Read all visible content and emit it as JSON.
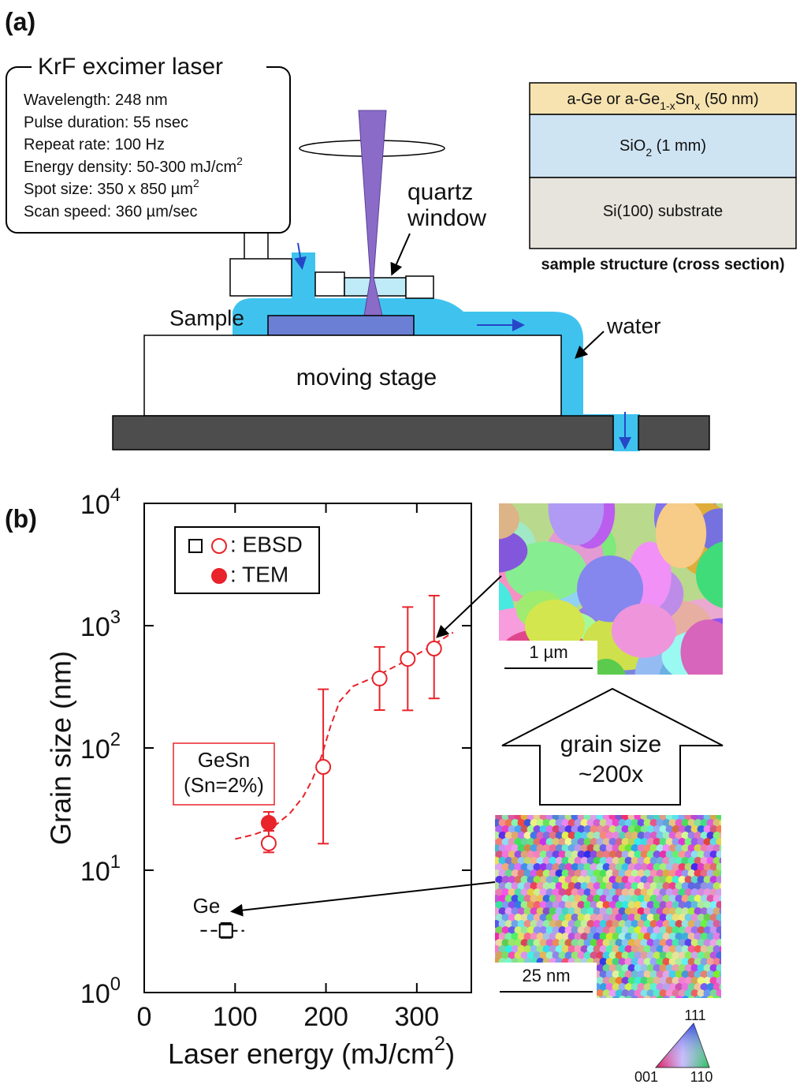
{
  "panel_a": {
    "label": "(a)",
    "laser": {
      "title": "KrF excimer laser",
      "specs": [
        [
          "Wavelength: 248 nm"
        ],
        [
          "Pulse duration: 55 nsec"
        ],
        [
          "Repeat rate: 100 Hz"
        ],
        [
          "Energy density: 50-300 mJ/cm",
          "2"
        ],
        [
          "Spot size: 350 x 850 µm",
          "2"
        ],
        [
          "Scan speed: 360 µm/sec"
        ]
      ]
    },
    "quartz_window": [
      "quartz",
      "window"
    ],
    "sample": "Sample",
    "water": "water",
    "stage": "moving stage",
    "layers": [
      [
        "a-Ge or a-Ge",
        "1-x",
        "Sn",
        "x",
        " (50 nm)"
      ],
      [
        "SiO",
        "2",
        " (1 mm)"
      ],
      [
        "Si(100) substrate"
      ]
    ],
    "layers_caption": "sample structure (cross section)"
  },
  "chart_data": {
    "type": "scatter",
    "label": "(b)",
    "xlabel": [
      "Laser energy (mJ/cm",
      "2",
      ")"
    ],
    "ylabel": "Grain size (nm)",
    "xlim": [
      0,
      360
    ],
    "ylim": [
      1,
      10000
    ],
    "yscale": "log",
    "xticks": [
      0,
      100,
      200,
      300
    ],
    "yticks": [
      {
        "value": 1,
        "label": "10",
        "exp": "0"
      },
      {
        "value": 10,
        "label": "10",
        "exp": "1"
      },
      {
        "value": 100,
        "label": "10",
        "exp": "2"
      },
      {
        "value": 1000,
        "label": "10",
        "exp": "3"
      },
      {
        "value": 10000,
        "label": "10",
        "exp": "4"
      }
    ],
    "series": [
      {
        "marker": "open-circle",
        "color": "#e8232a",
        "x": [
          137,
          197,
          259,
          290,
          319
        ],
        "values": [
          16.6,
          70,
          370,
          535,
          650
        ],
        "err_low": [
          14,
          16.5,
          204,
          203,
          254
        ],
        "err_high": [
          21,
          302,
          670,
          1420,
          1760
        ]
      },
      {
        "marker": "filled-circle",
        "color": "#e8232a",
        "x": [
          137
        ],
        "values": [
          24.4
        ],
        "err_low": [
          21
        ],
        "err_high": [
          30
        ]
      },
      {
        "marker": "open-square",
        "color": "#000000",
        "x": [
          90
        ],
        "values": [
          3.2
        ],
        "err_low": [
          2.8
        ],
        "err_high": [
          3.7
        ]
      }
    ],
    "fits": [
      {
        "color": "#e8232a",
        "x": [
          100,
          120,
          140,
          160,
          175,
          185,
          195,
          205,
          215,
          230,
          250,
          280,
          310,
          340
        ],
        "values": [
          18,
          19.5,
          22,
          29,
          40,
          55,
          85,
          150,
          240,
          320,
          370,
          480,
          640,
          880
        ]
      },
      {
        "color": "#000000",
        "x": [
          62,
          110
        ],
        "values": [
          3.2,
          3.2
        ]
      }
    ],
    "legend": [
      {
        "markers": [
          "open-square",
          "open-circle"
        ],
        "colors": [
          "#000000",
          "#e8232a"
        ],
        "label": ": EBSD"
      },
      {
        "markers": [
          "filled-circle"
        ],
        "colors": [
          "#e8232a"
        ],
        "label": ": TEM"
      }
    ],
    "annotations": [
      {
        "lines": [
          "GeSn",
          "(Sn=2%)"
        ],
        "color": "#e8232a"
      },
      {
        "lines": [
          "Ge"
        ],
        "color": "#000000"
      }
    ]
  },
  "panel_b_images": {
    "top_scale": "1 µm",
    "bottom_scale": "25 nm",
    "arrow": [
      "grain size",
      "~200x"
    ],
    "triangle": [
      "111",
      "001",
      "110"
    ]
  }
}
